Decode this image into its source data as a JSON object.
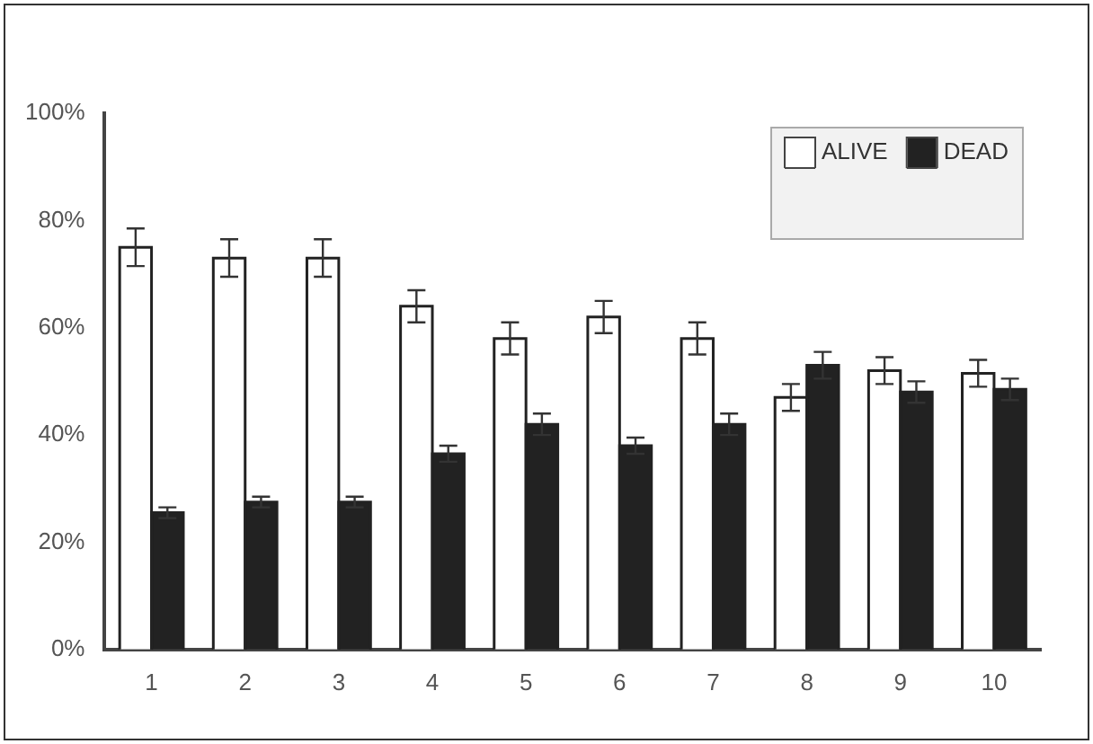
{
  "chart_data": {
    "type": "bar",
    "categories": [
      "1",
      "2",
      "3",
      "4",
      "5",
      "6",
      "7",
      "8",
      "9",
      "10"
    ],
    "series": [
      {
        "name": "ALIVE",
        "color": "#ffffff",
        "values": [
          75,
          73,
          73,
          64,
          58,
          62,
          58,
          47,
          52,
          51.5
        ],
        "errors": [
          3.5,
          3.5,
          3.5,
          3,
          3,
          3,
          3,
          2.5,
          2.5,
          2.5
        ]
      },
      {
        "name": "DEAD",
        "color": "#222222",
        "values": [
          25.5,
          27.5,
          27.5,
          36.5,
          42,
          38,
          42,
          53,
          48,
          48.5
        ],
        "errors": [
          1,
          1,
          1,
          1.5,
          2,
          1.5,
          2,
          2.5,
          2,
          2
        ]
      }
    ],
    "ylim": [
      0,
      100
    ],
    "yticks": [
      {
        "value": 0,
        "label": "0%"
      },
      {
        "value": 20,
        "label": "20%"
      },
      {
        "value": 40,
        "label": "40%"
      },
      {
        "value": 60,
        "label": "60%"
      },
      {
        "value": 80,
        "label": "80%"
      },
      {
        "value": 100,
        "label": "100%"
      }
    ],
    "grid": false,
    "legend": "top right"
  }
}
